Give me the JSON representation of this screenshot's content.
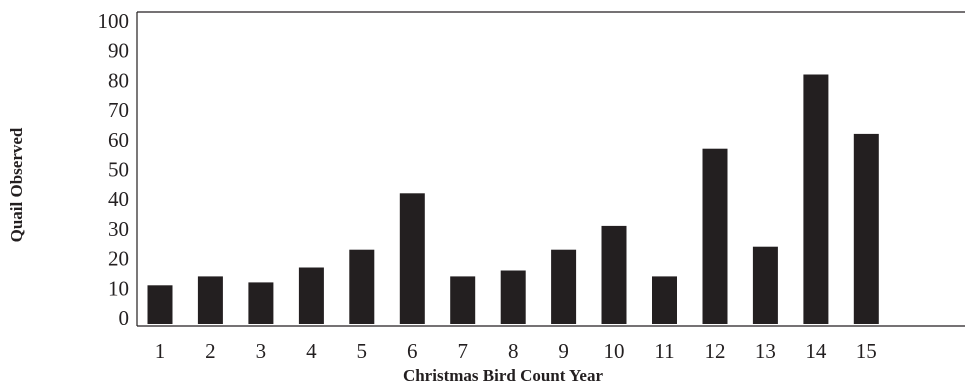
{
  "chart_data": {
    "type": "bar",
    "xlabel": "Christmas Bird Count Year",
    "ylabel": "Quail Observed",
    "ylim": [
      0,
      100
    ],
    "yticks": [
      0,
      10,
      20,
      30,
      40,
      50,
      60,
      70,
      80,
      90,
      100
    ],
    "categories": [
      "1",
      "2",
      "3",
      "4",
      "5",
      "6",
      "7",
      "8",
      "9",
      "10",
      "11",
      "12",
      "13",
      "14",
      "15"
    ],
    "values": [
      11,
      14,
      12,
      17,
      23,
      42,
      14,
      16,
      23,
      31,
      14,
      57,
      24,
      82,
      62
    ],
    "bar_color": "#231f20",
    "grid": false
  }
}
